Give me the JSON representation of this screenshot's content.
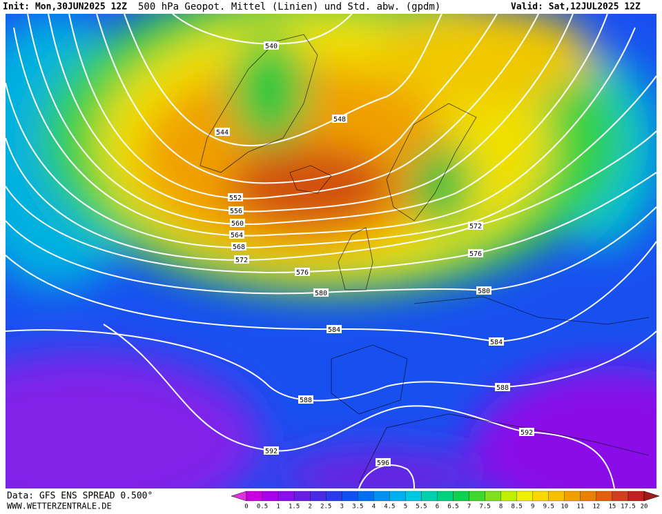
{
  "header": {
    "init": "Init: Mon,30JUN2025 12Z",
    "title": "500 hPa Geopot. Mittel (Linien) und Std. abw. (gpdm)",
    "valid": "Valid: Sat,12JUL2025 12Z"
  },
  "contour_labels": [
    "540",
    "548",
    "544",
    "552",
    "556",
    "560",
    "564",
    "568",
    "572",
    "576",
    "580",
    "572",
    "576",
    "580",
    "584",
    "584",
    "588",
    "588",
    "592",
    "592",
    "596"
  ],
  "colorbar": {
    "labels": [
      "0",
      "0.5",
      "1",
      "1.5",
      "2",
      "2.5",
      "3",
      "3.5",
      "4",
      "4.5",
      "5",
      "5.5",
      "6",
      "6.5",
      "7",
      "7.5",
      "8",
      "8.5",
      "9",
      "9.5",
      "10",
      "11",
      "12",
      "15",
      "17.5",
      "20"
    ],
    "colors": [
      "#e030e0",
      "#c800e0",
      "#a800e8",
      "#8a10e8",
      "#6a1ee0",
      "#4a2ce0",
      "#2a3ce8",
      "#1050f0",
      "#0070f0",
      "#0090f0",
      "#00b0f0",
      "#00c8e0",
      "#00d0b0",
      "#00d080",
      "#10d050",
      "#40d830",
      "#80e020",
      "#c0f000",
      "#f0f000",
      "#f8d800",
      "#f8c000",
      "#f0a000",
      "#e88000",
      "#e06010",
      "#d04020",
      "#c02020",
      "#a01818"
    ]
  },
  "footer": {
    "source": "Data: GFS ENS SPREAD 0.500°",
    "site": "WWW.WETTERZENTRALE.DE"
  }
}
